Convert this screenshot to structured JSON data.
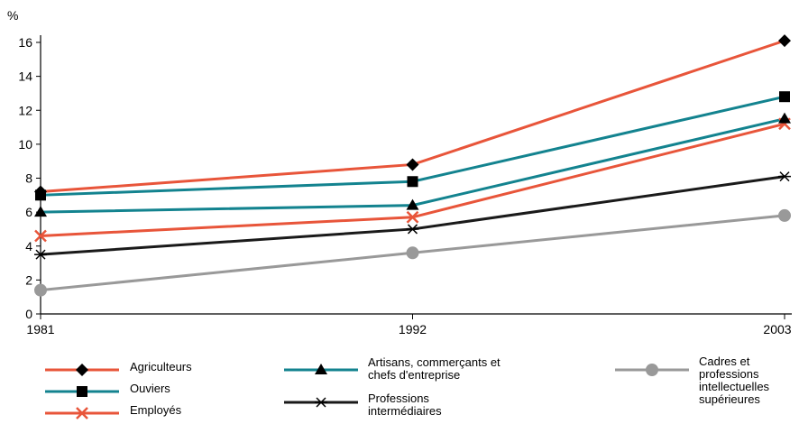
{
  "chart_data": {
    "type": "line",
    "unit_label": "%",
    "x": [
      "1981",
      "1992",
      "2003"
    ],
    "ylim": [
      0,
      16
    ],
    "yticks": [
      "0",
      "2",
      "4",
      "6",
      "8",
      "10",
      "12",
      "14",
      "16"
    ],
    "grid": false,
    "legend_position": "bottom",
    "series": [
      {
        "name": "Agriculteurs",
        "values": [
          7.2,
          8.8,
          16.1
        ],
        "color": "#e8553a",
        "marker": "diamond"
      },
      {
        "name": "Ouviers",
        "values": [
          7.0,
          7.8,
          12.8
        ],
        "color": "#13838f",
        "marker": "square"
      },
      {
        "name": "Employés",
        "values": [
          4.6,
          5.7,
          11.2
        ],
        "color": "#e8553a",
        "marker": "x"
      },
      {
        "name": "Artisans, commerçants et chefs d'entreprise",
        "values": [
          6.0,
          6.4,
          11.5
        ],
        "color": "#13838f",
        "marker": "triangle"
      },
      {
        "name": "Professions intermédiaires",
        "values": [
          3.5,
          5.0,
          8.1
        ],
        "color": "#1a1a1a",
        "marker": "star"
      },
      {
        "name": "Cadres et professions intellectuelles supérieures",
        "values": [
          1.4,
          3.6,
          5.8
        ],
        "color": "#999999",
        "marker": "circle"
      }
    ]
  }
}
